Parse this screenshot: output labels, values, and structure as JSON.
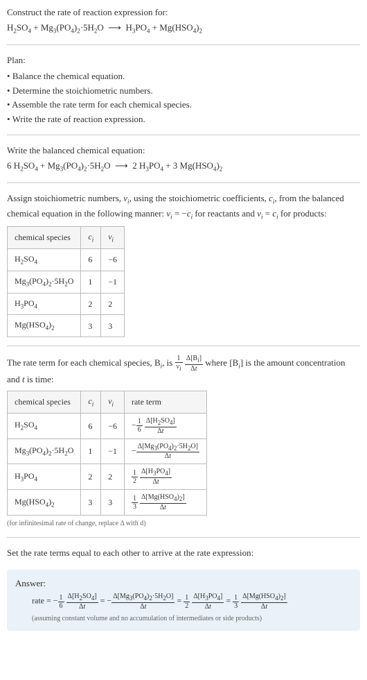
{
  "intro": {
    "prompt": "Construct the rate of reaction expression for:",
    "equation_html": "H<span class='sub'>2</span>SO<span class='sub'>4</span> + Mg<span class='sub'>3</span>(PO<span class='sub'>4</span>)<span class='sub'>2</span>·5H<span class='sub'>2</span>O &nbsp;⟶&nbsp; H<span class='sub'>3</span>PO<span class='sub'>4</span> + Mg(HSO<span class='sub'>4</span>)<span class='sub'>2</span>"
  },
  "plan": {
    "heading": "Plan:",
    "items": [
      "Balance the chemical equation.",
      "Determine the stoichiometric numbers.",
      "Assemble the rate term for each chemical species.",
      "Write the rate of reaction expression."
    ]
  },
  "balanced": {
    "heading": "Write the balanced chemical equation:",
    "equation_html": "6 H<span class='sub'>2</span>SO<span class='sub'>4</span> + Mg<span class='sub'>3</span>(PO<span class='sub'>4</span>)<span class='sub'>2</span>·5H<span class='sub'>2</span>O &nbsp;⟶&nbsp; 2 H<span class='sub'>3</span>PO<span class='sub'>4</span> + 3 Mg(HSO<span class='sub'>4</span>)<span class='sub'>2</span>"
  },
  "stoich": {
    "text_html": "Assign stoichiometric numbers, <i>ν<span class='sub'>i</span></i>, using the stoichiometric coefficients, <i>c<span class='sub'>i</span></i>, from the balanced chemical equation in the following manner: <i>ν<span class='sub'>i</span></i> = −<i>c<span class='sub'>i</span></i> for reactants and <i>ν<span class='sub'>i</span></i> = <i>c<span class='sub'>i</span></i> for products:",
    "headers": [
      "chemical species",
      "c_i",
      "ν_i"
    ],
    "header_html": [
      "chemical species",
      "<i>c<span class='sub'>i</span></i>",
      "<i>ν<span class='sub'>i</span></i>"
    ],
    "rows": [
      {
        "species_html": "H<span class='sub'>2</span>SO<span class='sub'>4</span>",
        "c": "6",
        "nu": "−6"
      },
      {
        "species_html": "Mg<span class='sub'>3</span>(PO<span class='sub'>4</span>)<span class='sub'>2</span>·5H<span class='sub'>2</span>O",
        "c": "1",
        "nu": "−1"
      },
      {
        "species_html": "H<span class='sub'>3</span>PO<span class='sub'>4</span>",
        "c": "2",
        "nu": "2"
      },
      {
        "species_html": "Mg(HSO<span class='sub'>4</span>)<span class='sub'>2</span>",
        "c": "3",
        "nu": "3"
      }
    ]
  },
  "rateterm": {
    "text_html": "The rate term for each chemical species, B<span class='sub'><i>i</i></span>, is <span class='frac'><span class='num'>1</span><span class='den'><i>ν<span class='sub'>i</span></i></span></span> <span class='frac'><span class='num'>Δ[B<span class='sub'><i>i</i></span>]</span><span class='den'>Δ<i>t</i></span></span> where [B<span class='sub'><i>i</i></span>] is the amount concentration and <i>t</i> is time:",
    "headers": [
      "chemical species",
      "c_i",
      "ν_i",
      "rate term"
    ],
    "header_html": [
      "chemical species",
      "<i>c<span class='sub'>i</span></i>",
      "<i>ν<span class='sub'>i</span></i>",
      "rate term"
    ],
    "rows": [
      {
        "species_html": "H<span class='sub'>2</span>SO<span class='sub'>4</span>",
        "c": "6",
        "nu": "−6",
        "rate_html": "−<span class='frac'><span class='num'>1</span><span class='den'>6</span></span> <span class='frac'><span class='num'>Δ[H<span class='sub'>2</span>SO<span class='sub'>4</span>]</span><span class='den'>Δ<i>t</i></span></span>"
      },
      {
        "species_html": "Mg<span class='sub'>3</span>(PO<span class='sub'>4</span>)<span class='sub'>2</span>·5H<span class='sub'>2</span>O",
        "c": "1",
        "nu": "−1",
        "rate_html": "−<span class='frac'><span class='num'>Δ[Mg<span class='sub'>3</span>(PO<span class='sub'>4</span>)<span class='sub'>2</span>·5H<span class='sub'>2</span>O]</span><span class='den'>Δ<i>t</i></span></span>"
      },
      {
        "species_html": "H<span class='sub'>3</span>PO<span class='sub'>4</span>",
        "c": "2",
        "nu": "2",
        "rate_html": "<span class='frac'><span class='num'>1</span><span class='den'>2</span></span> <span class='frac'><span class='num'>Δ[H<span class='sub'>3</span>PO<span class='sub'>4</span>]</span><span class='den'>Δ<i>t</i></span></span>"
      },
      {
        "species_html": "Mg(HSO<span class='sub'>4</span>)<span class='sub'>2</span>",
        "c": "3",
        "nu": "3",
        "rate_html": "<span class='frac'><span class='num'>1</span><span class='den'>3</span></span> <span class='frac'><span class='num'>Δ[Mg(HSO<span class='sub'>4</span>)<span class='sub'>2</span>]</span><span class='den'>Δ<i>t</i></span></span>"
      }
    ],
    "note": "(for infinitesimal rate of change, replace Δ with d)"
  },
  "final": {
    "heading": "Set the rate terms equal to each other to arrive at the rate expression:"
  },
  "answer": {
    "label": "Answer:",
    "equation_html": "rate = −<span class='frac'><span class='num'>1</span><span class='den'>6</span></span> <span class='frac'><span class='num'>Δ[H<span class='sub'>2</span>SO<span class='sub'>4</span>]</span><span class='den'>Δ<i>t</i></span></span> = −<span class='frac'><span class='num'>Δ[Mg<span class='sub'>3</span>(PO<span class='sub'>4</span>)<span class='sub'>2</span>·5H<span class='sub'>2</span>O]</span><span class='den'>Δ<i>t</i></span></span> = <span class='frac'><span class='num'>1</span><span class='den'>2</span></span> <span class='frac'><span class='num'>Δ[H<span class='sub'>3</span>PO<span class='sub'>4</span>]</span><span class='den'>Δ<i>t</i></span></span> = <span class='frac'><span class='num'>1</span><span class='den'>3</span></span> <span class='frac'><span class='num'>Δ[Mg(HSO<span class='sub'>4</span>)<span class='sub'>2</span>]</span><span class='den'>Δ<i>t</i></span></span>",
    "note": "(assuming constant volume and no accumulation of intermediates or side products)"
  },
  "colors": {
    "answer_bg": "#eaf1f8",
    "border": "#bbb",
    "divider": "#ccc",
    "text": "#333",
    "note": "#666"
  }
}
